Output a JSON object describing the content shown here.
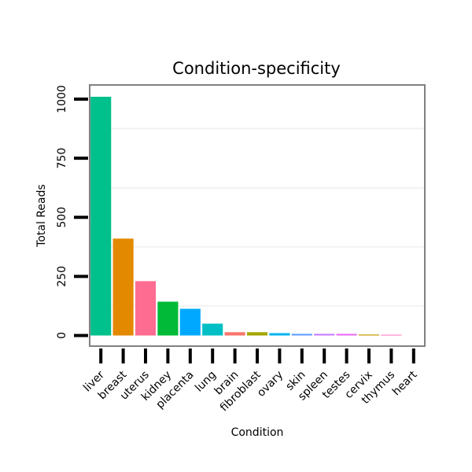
{
  "chart_data": {
    "type": "bar",
    "title": "Condition-specificity",
    "xlabel": "Condition",
    "ylabel": "Total Reads",
    "ylim": [
      -45,
      1060
    ],
    "yticks": [
      0,
      250,
      500,
      750,
      1000
    ],
    "ytick_labels": [
      "0",
      "250",
      "500",
      "750",
      "1000"
    ],
    "grid": true,
    "categories": [
      "liver",
      "breast",
      "uterus",
      "kidney",
      "placenta",
      "lung",
      "brain",
      "fibroblast",
      "ovary",
      "skin",
      "spleen",
      "testes",
      "cervix",
      "thymus",
      "heart"
    ],
    "values": [
      1010,
      410,
      230,
      143,
      113,
      50,
      14,
      14,
      10,
      7,
      7,
      7,
      4,
      3,
      0
    ],
    "colors": [
      "#00C08B",
      "#E38900",
      "#FF6C91",
      "#00BA38",
      "#00A9FF",
      "#00BFC4",
      "#F8766D",
      "#A3A500",
      "#00B4EF",
      "#619CFF",
      "#C77CFF",
      "#E76BF3",
      "#C49A00",
      "#FF62BC",
      "#53B400"
    ]
  }
}
